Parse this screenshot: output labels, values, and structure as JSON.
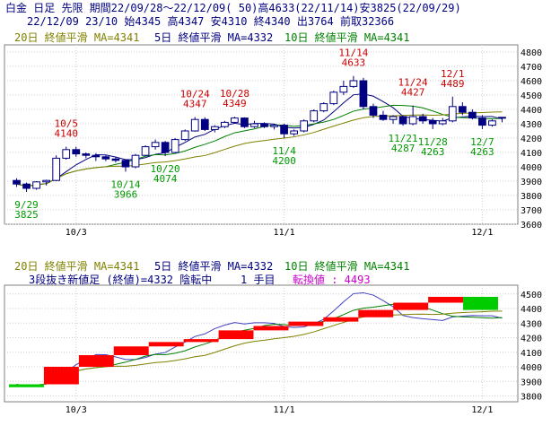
{
  "header": {
    "line1": "白金 日足 先限 期間22/09/28～22/12/09( 50)高4633(22/11/14)安3825(22/09/29)",
    "line2": "22/12/09 23/10 始4345 高4347 安4310 終4340 出3764 前取32366"
  },
  "legend_top": {
    "ma20": "20日 終値平滑 MA=4341",
    "ma5": "5日 終値平滑 MA=4332",
    "ma10": "10日 終値平滑 MA=4341"
  },
  "legend_bottom": {
    "ma20": "20日 終値平滑 MA=4341",
    "ma5": "5日 終値平滑 MA=4332",
    "ma10": "10日 終値平滑 MA=4341",
    "status": "3段抜き新値足 (終値)=4332 陰転中",
    "step": "1 手目",
    "reversal": "転換値 : 4493"
  },
  "colors": {
    "up_candle": "#ffffff",
    "down_candle": "#000080",
    "ma5": "#000080",
    "ma10": "#008000",
    "ma20": "#808000",
    "high_label": "#cc0000",
    "low_label": "#009900",
    "kagi_up": "#ff0000",
    "kagi_down": "#00cc00",
    "grid": "#cfcfcf"
  },
  "chart_data": [
    {
      "type": "candlestick",
      "x_ticks": [
        "10/3",
        "11/1",
        "12/1"
      ],
      "y_ticks": [
        3600,
        3700,
        3800,
        3900,
        4000,
        4100,
        4200,
        4300,
        4400,
        4500,
        4600,
        4700,
        4800
      ],
      "ylim": [
        3600,
        4850
      ],
      "grid": true,
      "annotations": [
        {
          "date": "9/29",
          "value": 3825,
          "kind": "low"
        },
        {
          "date": "10/5",
          "value": 4140,
          "kind": "high"
        },
        {
          "date": "10/14",
          "value": 3966,
          "kind": "low"
        },
        {
          "date": "10/20",
          "value": 4074,
          "kind": "low"
        },
        {
          "date": "10/24",
          "value": 4347,
          "kind": "high"
        },
        {
          "date": "10/28",
          "value": 4349,
          "kind": "high"
        },
        {
          "date": "11/4",
          "value": 4200,
          "kind": "low"
        },
        {
          "date": "11/14",
          "value": 4633,
          "kind": "high"
        },
        {
          "date": "11/21",
          "value": 4287,
          "kind": "low"
        },
        {
          "date": "11/24",
          "value": 4427,
          "kind": "high"
        },
        {
          "date": "11/28",
          "value": 4263,
          "kind": "low"
        },
        {
          "date": "12/1",
          "value": 4489,
          "kind": "high"
        },
        {
          "date": "12/7",
          "value": 4263,
          "kind": "low"
        }
      ],
      "candles": [
        [
          3905,
          3920,
          3860,
          3880
        ],
        [
          3880,
          3890,
          3825,
          3850
        ],
        [
          3850,
          3900,
          3840,
          3895
        ],
        [
          3895,
          3910,
          3870,
          3905
        ],
        [
          3905,
          4080,
          3900,
          4060
        ],
        [
          4060,
          4140,
          4050,
          4120
        ],
        [
          4120,
          4140,
          4070,
          4090
        ],
        [
          4090,
          4100,
          4060,
          4080
        ],
        [
          4080,
          4095,
          4040,
          4070
        ],
        [
          4070,
          4080,
          4040,
          4055
        ],
        [
          4055,
          4070,
          4030,
          4045
        ],
        [
          4045,
          4050,
          3966,
          4000
        ],
        [
          4000,
          4090,
          3990,
          4080
        ],
        [
          4080,
          4150,
          4075,
          4140
        ],
        [
          4140,
          4190,
          4120,
          4170
        ],
        [
          4170,
          4180,
          4074,
          4100
        ],
        [
          4100,
          4200,
          4095,
          4190
        ],
        [
          4190,
          4260,
          4180,
          4250
        ],
        [
          4250,
          4347,
          4245,
          4330
        ],
        [
          4330,
          4345,
          4250,
          4260
        ],
        [
          4260,
          4290,
          4240,
          4280
        ],
        [
          4280,
          4320,
          4270,
          4310
        ],
        [
          4310,
          4349,
          4300,
          4340
        ],
        [
          4340,
          4345,
          4270,
          4280
        ],
        [
          4280,
          4320,
          4270,
          4300
        ],
        [
          4300,
          4310,
          4270,
          4280
        ],
        [
          4280,
          4300,
          4260,
          4290
        ],
        [
          4290,
          4300,
          4200,
          4230
        ],
        [
          4230,
          4260,
          4215,
          4250
        ],
        [
          4250,
          4330,
          4240,
          4320
        ],
        [
          4320,
          4400,
          4310,
          4390
        ],
        [
          4390,
          4450,
          4380,
          4440
        ],
        [
          4440,
          4530,
          4430,
          4520
        ],
        [
          4520,
          4600,
          4500,
          4560
        ],
        [
          4560,
          4633,
          4550,
          4600
        ],
        [
          4600,
          4620,
          4400,
          4420
        ],
        [
          4420,
          4440,
          4340,
          4360
        ],
        [
          4360,
          4390,
          4320,
          4330
        ],
        [
          4330,
          4360,
          4300,
          4350
        ],
        [
          4350,
          4360,
          4287,
          4300
        ],
        [
          4300,
          4427,
          4290,
          4350
        ],
        [
          4350,
          4370,
          4300,
          4320
        ],
        [
          4320,
          4340,
          4263,
          4300
        ],
        [
          4300,
          4340,
          4290,
          4320
        ],
        [
          4320,
          4489,
          4310,
          4420
        ],
        [
          4420,
          4450,
          4360,
          4380
        ],
        [
          4380,
          4400,
          4330,
          4340
        ],
        [
          4340,
          4360,
          4263,
          4290
        ],
        [
          4290,
          4330,
          4280,
          4320
        ],
        [
          4345,
          4347,
          4310,
          4340
        ]
      ]
    },
    {
      "type": "bar",
      "subtype": "three-line-break",
      "x_ticks": [
        "10/3",
        "11/1",
        "12/1"
      ],
      "y_ticks": [
        3800,
        3900,
        4000,
        4100,
        4200,
        4300,
        4400,
        4500
      ],
      "ylim": [
        3760,
        4560
      ],
      "grid": true,
      "bricks": [
        {
          "from": 3860,
          "to": 3880,
          "color": "green"
        },
        {
          "from": 3880,
          "to": 4000,
          "color": "red"
        },
        {
          "from": 4000,
          "to": 4080,
          "color": "red"
        },
        {
          "from": 4080,
          "to": 4140,
          "color": "red"
        },
        {
          "from": 4140,
          "to": 4170,
          "color": "red"
        },
        {
          "from": 4170,
          "to": 4190,
          "color": "red"
        },
        {
          "from": 4190,
          "to": 4250,
          "color": "red"
        },
        {
          "from": 4250,
          "to": 4280,
          "color": "red"
        },
        {
          "from": 4280,
          "to": 4310,
          "color": "red"
        },
        {
          "from": 4310,
          "to": 4340,
          "color": "red"
        },
        {
          "from": 4340,
          "to": 4390,
          "color": "red"
        },
        {
          "from": 4390,
          "to": 4440,
          "color": "red"
        },
        {
          "from": 4440,
          "to": 4480,
          "color": "red"
        },
        {
          "from": 4480,
          "to": 4390,
          "color": "green"
        }
      ]
    }
  ]
}
